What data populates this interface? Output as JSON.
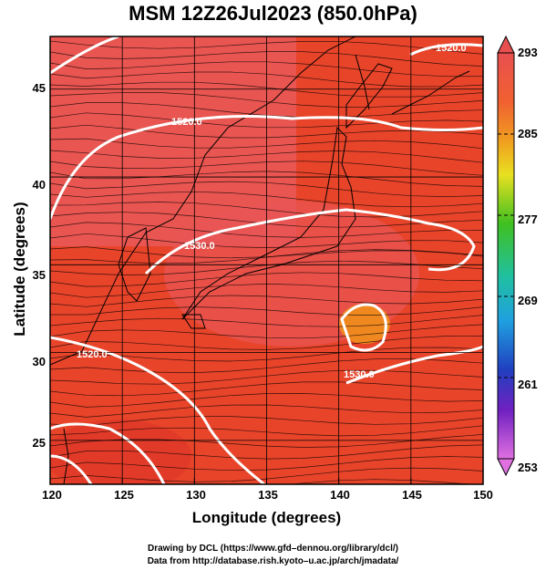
{
  "title": "MSM 12Z26Jul2023 (850.0hPa)",
  "xlabel": "Longitude (degrees)",
  "ylabel": "Latitude  (degrees)",
  "credits": {
    "line1": "Drawing by DCL (https://www.gfd–dennou.org/library/dcl/)",
    "line2": "Data from http://database.rish.kyoto–u.ac.jp/arch/jmadata/"
  },
  "map": {
    "lon_range": [
      120,
      150
    ],
    "lat_range": [
      22.5,
      48
    ],
    "lon_ticks": [
      "120",
      "125",
      "130",
      "135",
      "140",
      "145",
      "150"
    ],
    "lat_ticks": [
      "25",
      "30",
      "35",
      "40",
      "45"
    ],
    "contour_labels": [
      "1520.0",
      "1520.0",
      "1530.0",
      "1520.0",
      "1530.0"
    ],
    "colorbar": {
      "range": [
        253,
        293
      ],
      "ticks": [
        "293",
        "285",
        "277",
        "269",
        "261",
        "253"
      ],
      "colors": [
        "#e85050",
        "#f05a28",
        "#f08a20",
        "#f0c020",
        "#d8e020",
        "#60d020",
        "#20c080",
        "#20b8c8",
        "#2070e0",
        "#2030c0",
        "#7020c0",
        "#c020c0",
        "#e070e0"
      ]
    },
    "field_colors": {
      "warm": "#e8442a",
      "hot": "#e85a5a",
      "pocket": "#f08820",
      "land_line": "#000000",
      "contour": "#ffffff"
    }
  }
}
